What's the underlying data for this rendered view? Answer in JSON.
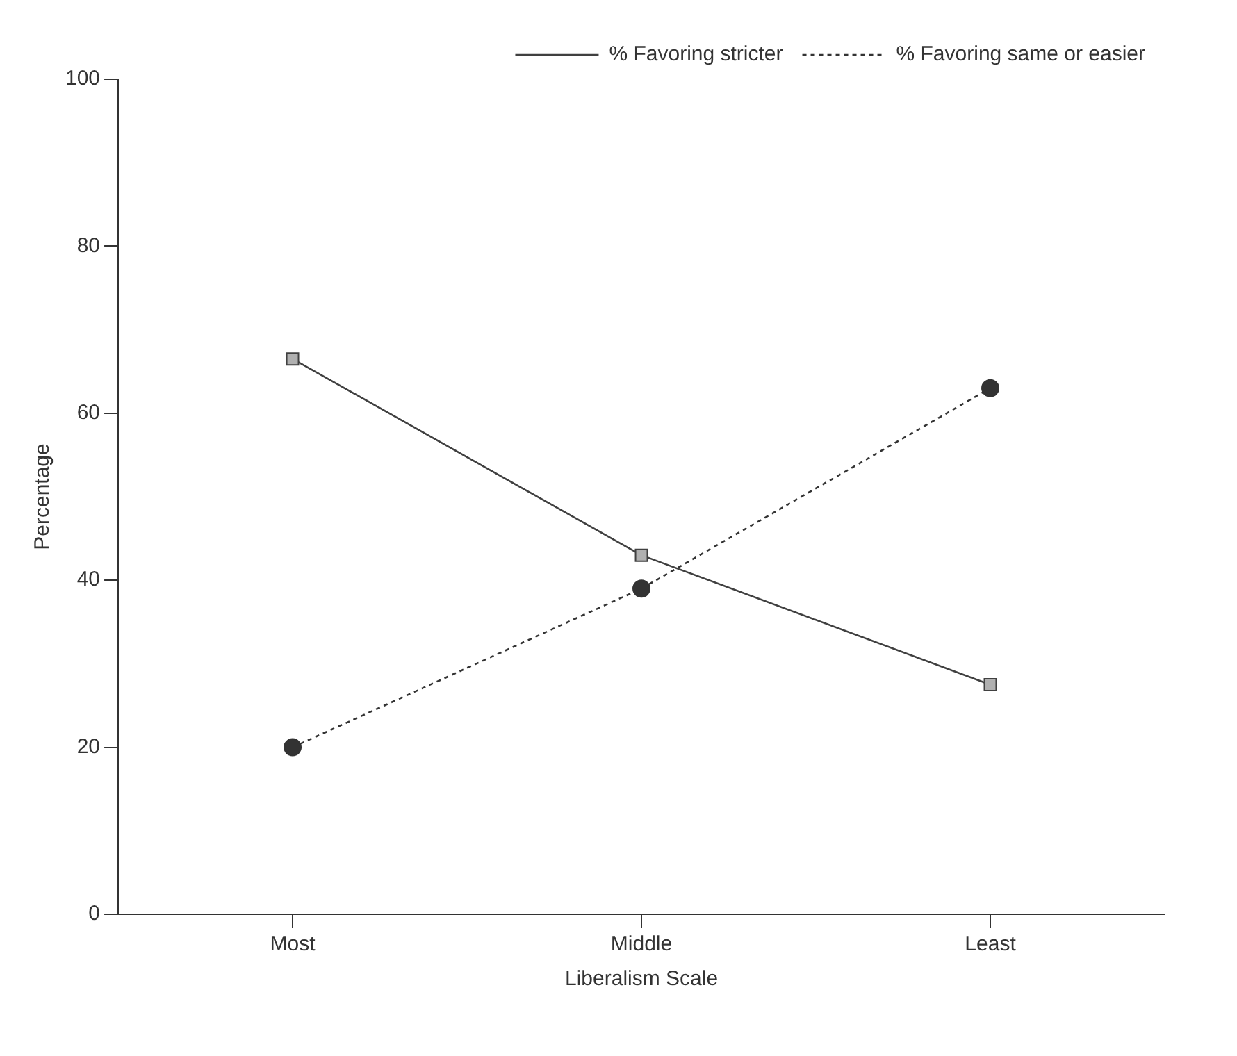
{
  "chart_data": {
    "type": "line",
    "xlabel": "Liberalism Scale",
    "ylabel": "Percentage",
    "categories": [
      "Most",
      "Middle",
      "Least"
    ],
    "series": [
      {
        "name": "% Favoring stricter",
        "color": "#404040",
        "values": [
          66.5,
          43,
          27.5
        ],
        "marker": "square",
        "line_style": "solid"
      },
      {
        "name": "% Favoring same or easier",
        "color": "#333333",
        "values": [
          20,
          39,
          63
        ],
        "marker": "circle",
        "line_style": "dotted"
      }
    ],
    "ylim": [
      0,
      100
    ],
    "yticks": [
      0,
      20,
      40,
      60,
      80,
      100
    ],
    "grid": false,
    "legend": "top right"
  }
}
